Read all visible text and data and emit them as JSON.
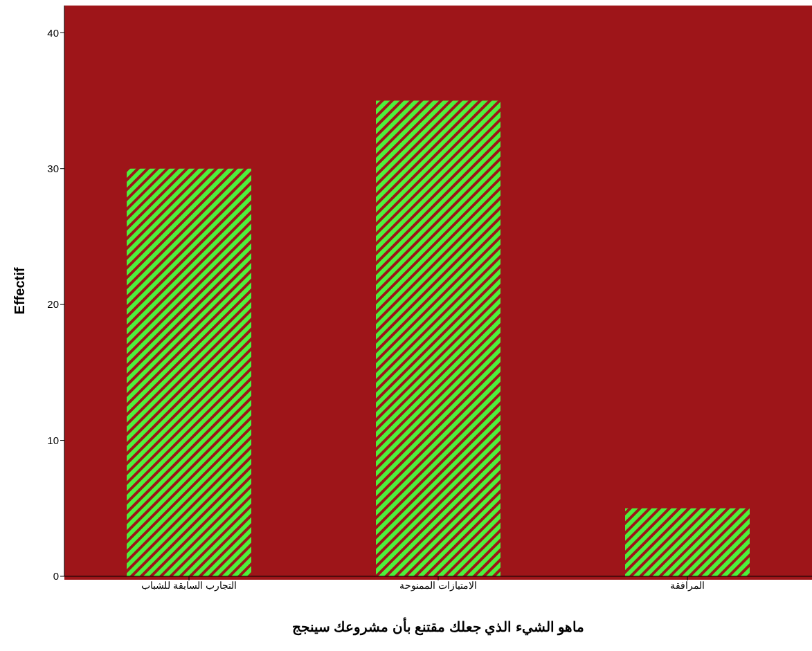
{
  "chart_data": {
    "type": "bar",
    "xlabel": "ماهو الشيء الذي جعلك مقتنع بأن مشروعك سينجج",
    "ylabel": "Effectif",
    "categories": [
      "التجارب السابقة للشباب",
      "الامتيازات الممنوحة",
      "المرافقة"
    ],
    "values": [
      30,
      35,
      5
    ],
    "color": "#4ef03c",
    "ylim": [
      0,
      42
    ],
    "yticks": [
      0,
      10,
      20,
      30,
      40
    ]
  }
}
